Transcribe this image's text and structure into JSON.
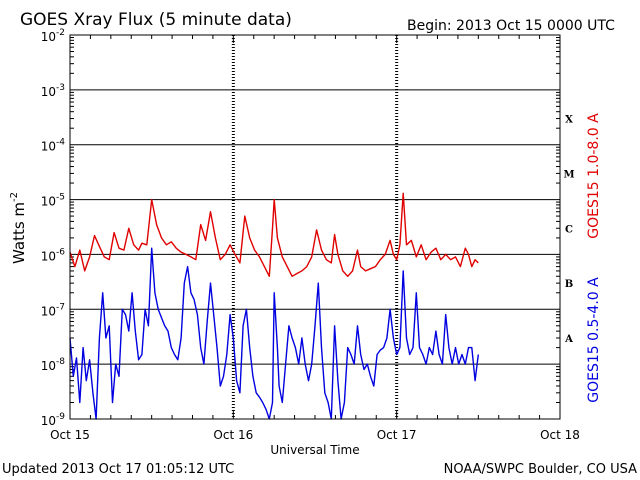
{
  "header": {
    "title": "GOES Xray Flux (5 minute data)",
    "begin_label": "Begin:  2013 Oct 15 0000 UTC"
  },
  "footer": {
    "updated": "Updated 2013 Oct 17 01:05:12 UTC",
    "source": "NOAA/SWPC Boulder, CO USA"
  },
  "chart_data": {
    "type": "line",
    "title": "GOES Xray Flux (5 minute data)",
    "xlabel": "Universal Time",
    "ylabel_base": "Watts m",
    "ylabel_exp": "-2",
    "y_scale": "log",
    "ylim": [
      1e-09,
      0.01
    ],
    "xlim_days": [
      0,
      3
    ],
    "x_ticks": [
      "Oct 15",
      "Oct 16",
      "Oct 17",
      "Oct 18"
    ],
    "y_ticks": [
      {
        "exp": "-2",
        "value": 0.01
      },
      {
        "exp": "-3",
        "value": 0.001
      },
      {
        "exp": "-4",
        "value": 0.0001
      },
      {
        "exp": "-5",
        "value": 1e-05
      },
      {
        "exp": "-6",
        "value": 1e-06
      },
      {
        "exp": "-7",
        "value": 1e-07
      },
      {
        "exp": "-8",
        "value": 1e-08
      },
      {
        "exp": "-9",
        "value": 1e-09
      }
    ],
    "flare_classes": [
      {
        "label": "X",
        "value": 0.0003
      },
      {
        "label": "M",
        "value": 3e-05
      },
      {
        "label": "C",
        "value": 3e-06
      },
      {
        "label": "B",
        "value": 3e-07
      },
      {
        "label": "A",
        "value": 3e-08
      }
    ],
    "grid": "horizontal at decades, dotted vertical at day boundaries",
    "series": [
      {
        "name": "GOES15 1.0-8.0 A",
        "color": "#e00000",
        "points": [
          [
            0.0,
            1.1e-06
          ],
          [
            0.03,
            6e-07
          ],
          [
            0.06,
            1.2e-06
          ],
          [
            0.09,
            5e-07
          ],
          [
            0.12,
            9e-07
          ],
          [
            0.15,
            2.2e-06
          ],
          [
            0.18,
            1.4e-06
          ],
          [
            0.21,
            9e-07
          ],
          [
            0.24,
            8e-07
          ],
          [
            0.27,
            2.5e-06
          ],
          [
            0.3,
            1.3e-06
          ],
          [
            0.33,
            1.2e-06
          ],
          [
            0.36,
            3e-06
          ],
          [
            0.39,
            1.5e-06
          ],
          [
            0.42,
            1.2e-06
          ],
          [
            0.44,
            1.6e-06
          ],
          [
            0.47,
            1.5e-06
          ],
          [
            0.5,
            1e-05
          ],
          [
            0.53,
            3.5e-06
          ],
          [
            0.56,
            2e-06
          ],
          [
            0.59,
            1.5e-06
          ],
          [
            0.62,
            1.7e-06
          ],
          [
            0.65,
            1.3e-06
          ],
          [
            0.68,
            1.1e-06
          ],
          [
            0.71,
            1e-06
          ],
          [
            0.74,
            9e-07
          ],
          [
            0.77,
            8e-07
          ],
          [
            0.8,
            3.5e-06
          ],
          [
            0.83,
            1.8e-06
          ],
          [
            0.86,
            6e-06
          ],
          [
            0.89,
            2e-06
          ],
          [
            0.92,
            8e-07
          ],
          [
            0.95,
            1e-06
          ],
          [
            0.98,
            1.5e-06
          ],
          [
            1.01,
            1e-06
          ],
          [
            1.04,
            7e-07
          ],
          [
            1.07,
            5e-06
          ],
          [
            1.1,
            2e-06
          ],
          [
            1.13,
            1.2e-06
          ],
          [
            1.16,
            9e-07
          ],
          [
            1.19,
            6e-07
          ],
          [
            1.22,
            4e-07
          ],
          [
            1.24,
            3e-06
          ],
          [
            1.25,
            1e-05
          ],
          [
            1.27,
            2e-06
          ],
          [
            1.3,
            9e-07
          ],
          [
            1.33,
            6e-07
          ],
          [
            1.36,
            4e-07
          ],
          [
            1.39,
            4.5e-07
          ],
          [
            1.42,
            5e-07
          ],
          [
            1.45,
            6e-07
          ],
          [
            1.48,
            9e-07
          ],
          [
            1.51,
            2.8e-06
          ],
          [
            1.54,
            1.2e-06
          ],
          [
            1.57,
            8e-07
          ],
          [
            1.6,
            7e-07
          ],
          [
            1.62,
            2.3e-06
          ],
          [
            1.64,
            1e-06
          ],
          [
            1.67,
            5e-07
          ],
          [
            1.7,
            4e-07
          ],
          [
            1.73,
            5e-07
          ],
          [
            1.76,
            1.2e-06
          ],
          [
            1.78,
            6e-07
          ],
          [
            1.81,
            5e-07
          ],
          [
            1.84,
            5.5e-07
          ],
          [
            1.87,
            6e-07
          ],
          [
            1.9,
            8e-07
          ],
          [
            1.93,
            1e-06
          ],
          [
            1.96,
            1.8e-06
          ],
          [
            1.98,
            1e-06
          ],
          [
            2.0,
            8e-07
          ],
          [
            2.02,
            1.5e-06
          ],
          [
            2.04,
            1.3e-05
          ],
          [
            2.06,
            1.5e-06
          ],
          [
            2.09,
            1.8e-06
          ],
          [
            2.12,
            9e-07
          ],
          [
            2.15,
            1.5e-06
          ],
          [
            2.18,
            8e-07
          ],
          [
            2.21,
            1.1e-06
          ],
          [
            2.24,
            1.3e-06
          ],
          [
            2.27,
            8e-07
          ],
          [
            2.3,
            1e-06
          ],
          [
            2.33,
            8e-07
          ],
          [
            2.36,
            9e-07
          ],
          [
            2.39,
            6e-07
          ],
          [
            2.42,
            1.3e-06
          ],
          [
            2.44,
            1e-06
          ],
          [
            2.46,
            6e-07
          ],
          [
            2.48,
            8e-07
          ],
          [
            2.5,
            7e-07
          ]
        ]
      },
      {
        "name": "GOES15 0.5-4.0 A",
        "color": "#0000e0",
        "points": [
          [
            0.0,
            3e-08
          ],
          [
            0.02,
            6e-09
          ],
          [
            0.04,
            1.3e-08
          ],
          [
            0.06,
            2e-09
          ],
          [
            0.08,
            2e-08
          ],
          [
            0.1,
            5e-09
          ],
          [
            0.12,
            1.2e-08
          ],
          [
            0.14,
            3e-09
          ],
          [
            0.16,
            1e-09
          ],
          [
            0.18,
            3e-08
          ],
          [
            0.2,
            2e-07
          ],
          [
            0.22,
            3e-08
          ],
          [
            0.24,
            5e-08
          ],
          [
            0.26,
            2e-09
          ],
          [
            0.28,
            1e-08
          ],
          [
            0.3,
            6e-09
          ],
          [
            0.32,
            1e-07
          ],
          [
            0.34,
            8e-08
          ],
          [
            0.36,
            4e-08
          ],
          [
            0.38,
            2e-07
          ],
          [
            0.4,
            4e-08
          ],
          [
            0.42,
            1.2e-08
          ],
          [
            0.44,
            1.5e-08
          ],
          [
            0.46,
            1e-07
          ],
          [
            0.48,
            5e-08
          ],
          [
            0.5,
            1.3e-06
          ],
          [
            0.52,
            2e-07
          ],
          [
            0.54,
            1e-07
          ],
          [
            0.56,
            7e-08
          ],
          [
            0.58,
            5e-08
          ],
          [
            0.6,
            4e-08
          ],
          [
            0.62,
            2e-08
          ],
          [
            0.64,
            1.5e-08
          ],
          [
            0.66,
            1.2e-08
          ],
          [
            0.68,
            3e-08
          ],
          [
            0.7,
            3e-07
          ],
          [
            0.72,
            6e-07
          ],
          [
            0.74,
            2e-07
          ],
          [
            0.76,
            1.5e-07
          ],
          [
            0.78,
            8e-08
          ],
          [
            0.8,
            2e-08
          ],
          [
            0.82,
            1e-08
          ],
          [
            0.84,
            6e-08
          ],
          [
            0.86,
            3e-07
          ],
          [
            0.88,
            8e-08
          ],
          [
            0.9,
            2e-08
          ],
          [
            0.92,
            4e-09
          ],
          [
            0.94,
            6e-09
          ],
          [
            0.96,
            1.5e-08
          ],
          [
            0.98,
            8e-08
          ],
          [
            1.0,
            3e-08
          ],
          [
            1.02,
            5e-09
          ],
          [
            1.04,
            3e-09
          ],
          [
            1.06,
            5e-08
          ],
          [
            1.08,
            1e-07
          ],
          [
            1.1,
            2e-08
          ],
          [
            1.12,
            6e-09
          ],
          [
            1.14,
            3e-09
          ],
          [
            1.16,
            2.5e-09
          ],
          [
            1.18,
            2e-09
          ],
          [
            1.2,
            1.5e-09
          ],
          [
            1.22,
            1e-09
          ],
          [
            1.24,
            2e-09
          ],
          [
            1.25,
            2e-07
          ],
          [
            1.27,
            2e-08
          ],
          [
            1.28,
            4e-09
          ],
          [
            1.3,
            2e-09
          ],
          [
            1.32,
            1e-08
          ],
          [
            1.34,
            5e-08
          ],
          [
            1.36,
            3e-08
          ],
          [
            1.38,
            2e-08
          ],
          [
            1.4,
            1e-08
          ],
          [
            1.42,
            3e-08
          ],
          [
            1.44,
            1e-08
          ],
          [
            1.46,
            5e-09
          ],
          [
            1.48,
            1e-08
          ],
          [
            1.5,
            5e-08
          ],
          [
            1.52,
            3e-07
          ],
          [
            1.54,
            2e-08
          ],
          [
            1.56,
            3e-09
          ],
          [
            1.58,
            2e-09
          ],
          [
            1.6,
            1e-09
          ],
          [
            1.62,
            5e-08
          ],
          [
            1.64,
            5e-09
          ],
          [
            1.66,
            1e-09
          ],
          [
            1.68,
            2e-09
          ],
          [
            1.7,
            2e-08
          ],
          [
            1.72,
            1.5e-08
          ],
          [
            1.74,
            1e-08
          ],
          [
            1.76,
            5e-08
          ],
          [
            1.78,
            1.5e-08
          ],
          [
            1.8,
            8e-09
          ],
          [
            1.82,
            1e-08
          ],
          [
            1.84,
            6e-09
          ],
          [
            1.86,
            4e-09
          ],
          [
            1.88,
            1.5e-08
          ],
          [
            1.9,
            1.8e-08
          ],
          [
            1.92,
            2e-08
          ],
          [
            1.94,
            3e-08
          ],
          [
            1.96,
            1e-07
          ],
          [
            1.98,
            3e-08
          ],
          [
            2.0,
            1.5e-08
          ],
          [
            2.02,
            2e-08
          ],
          [
            2.04,
            5e-07
          ],
          [
            2.06,
            3e-08
          ],
          [
            2.08,
            1.5e-08
          ],
          [
            2.1,
            2e-08
          ],
          [
            2.12,
            2e-07
          ],
          [
            2.14,
            2e-08
          ],
          [
            2.16,
            1.5e-08
          ],
          [
            2.18,
            1e-08
          ],
          [
            2.2,
            2e-08
          ],
          [
            2.22,
            1.5e-08
          ],
          [
            2.24,
            4e-08
          ],
          [
            2.26,
            1.5e-08
          ],
          [
            2.28,
            1e-08
          ],
          [
            2.3,
            8e-08
          ],
          [
            2.32,
            2e-08
          ],
          [
            2.34,
            1e-08
          ],
          [
            2.36,
            2e-08
          ],
          [
            2.38,
            1e-08
          ],
          [
            2.4,
            1.5e-08
          ],
          [
            2.42,
            1e-08
          ],
          [
            2.44,
            2e-08
          ],
          [
            2.46,
            2e-08
          ],
          [
            2.48,
            5e-09
          ],
          [
            2.5,
            1.5e-08
          ]
        ]
      }
    ]
  }
}
